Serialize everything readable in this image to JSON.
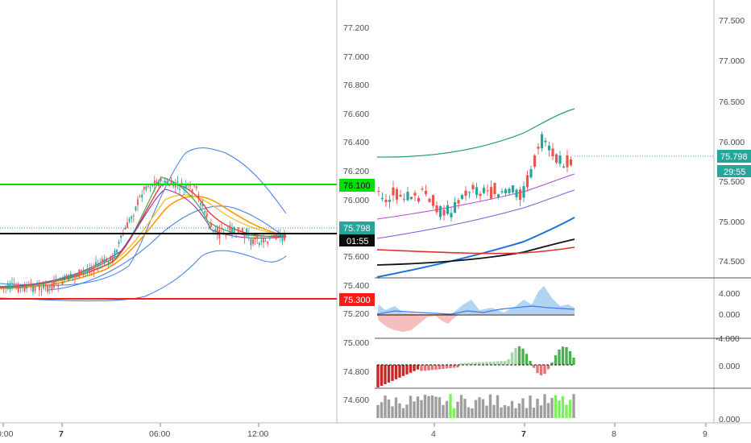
{
  "left_chart": {
    "y_ticks": [
      "77.200",
      "77.000",
      "76.800",
      "76.600",
      "76.400",
      "76.200",
      "76.000",
      "75.800",
      "75.600",
      "75.400",
      "75.200",
      "75.000",
      "74.800",
      "74.600"
    ],
    "x_ticks": [
      "0:00",
      "7",
      "06:00",
      "12:00"
    ],
    "levels": [
      {
        "name": "green-level",
        "value": "76.100",
        "color": "#00e000"
      },
      {
        "name": "price-line",
        "value": "75.798",
        "color": "#000000"
      },
      {
        "name": "red-level",
        "value": "75.300",
        "color": "#ff1a1a"
      }
    ],
    "price_label": "75.798",
    "countdown": "01:55",
    "level_label_green": "76.100",
    "level_label_red": "75.300"
  },
  "right_chart": {
    "y_ticks": [
      "77.500",
      "77.000",
      "76.500",
      "76.000",
      "75.500",
      "75.000",
      "74.500"
    ],
    "x_ticks": [
      "4",
      "7",
      "8",
      "9"
    ],
    "price_label": "75.798",
    "countdown": "29:55",
    "indicator1_ticks": [
      "4.000",
      "0.000",
      "-4.000"
    ],
    "indicator2_ticks": [
      "0.000"
    ],
    "indicator3_ticks": [
      "0.000"
    ]
  },
  "colors": {
    "up": "#26a69a",
    "down": "#ef5350",
    "accent_green": "#00e000",
    "accent_red": "#ff1a1a",
    "badge_teal": "#26a69a"
  }
}
